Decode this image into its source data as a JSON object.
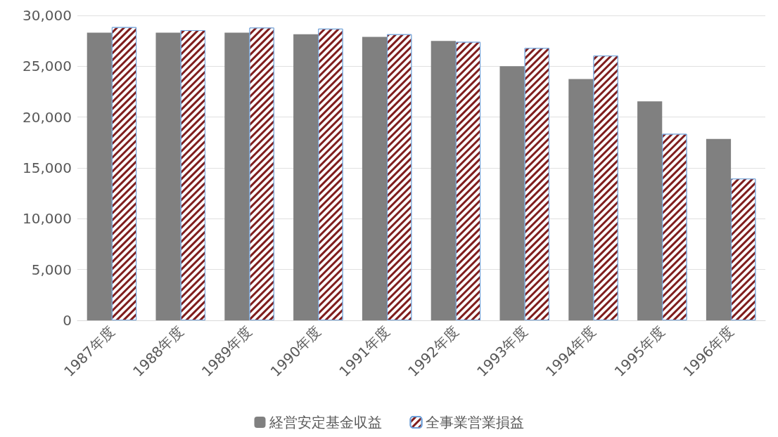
{
  "chart_data": {
    "type": "bar",
    "categories": [
      "1987年度",
      "1988年度",
      "1989年度",
      "1990年度",
      "1991年度",
      "1992年度",
      "1993年度",
      "1994年度",
      "1995年度",
      "1996年度"
    ],
    "series": [
      {
        "name": "経営安定基金収益",
        "color": "#808080",
        "values": [
          28300,
          28300,
          28300,
          28150,
          27900,
          27500,
          25000,
          23750,
          21550,
          17850
        ]
      },
      {
        "name": "全事業営業損益",
        "color": "#7f1d1d",
        "values": [
          28850,
          28550,
          28800,
          28700,
          28150,
          27400,
          26800,
          26050,
          18350,
          13950
        ]
      }
    ],
    "ylim": [
      0,
      30000
    ],
    "yticks": [
      0,
      {
        "value": 5000,
        "label": "5,000"
      },
      {
        "value": 10000,
        "label": "10,000"
      },
      {
        "value": 15000,
        "label": "15,000"
      },
      {
        "value": 20000,
        "label": "20,000"
      },
      {
        "value": 25000,
        "label": "25,000"
      },
      {
        "value": 30000,
        "label": "30,000"
      }
    ],
    "grid": "y",
    "legend": "bottom"
  }
}
